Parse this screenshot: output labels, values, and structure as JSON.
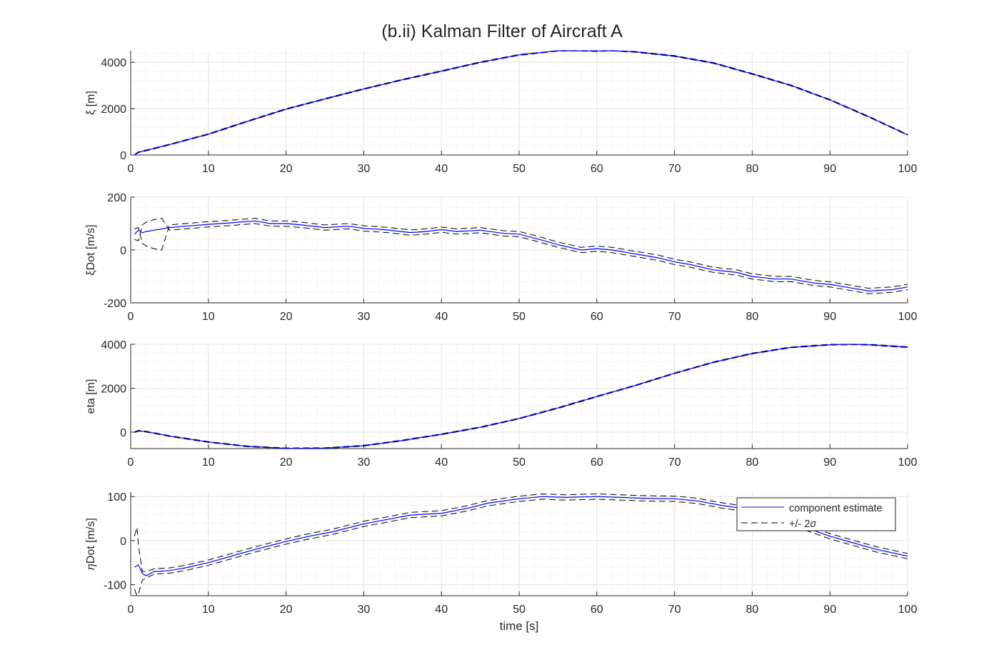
{
  "figure": {
    "title": "(b.ii) Kalman Filter of Aircraft A",
    "xlabel": "time [s]",
    "colors": {
      "estimate": "#0000ff",
      "bounds": "#000000",
      "grid": "#e3e3e3",
      "axis": "#262626"
    },
    "legend": {
      "placement": "inside-right of bottom subplot",
      "entries": [
        {
          "label": "component estimate",
          "style": "solid-blue"
        },
        {
          "label": "+/- 2",
          "symbol": "σ",
          "style": "dashed-black"
        }
      ]
    }
  },
  "chart_data": [
    {
      "type": "line",
      "ylabel": "ξ [m]",
      "xlim": [
        0,
        100
      ],
      "ylim": [
        0,
        4500
      ],
      "xticks": [
        0,
        10,
        20,
        30,
        40,
        50,
        60,
        70,
        80,
        90,
        100
      ],
      "yticks": [
        0,
        2000,
        4000
      ],
      "grid": true,
      "band": 20,
      "x": [
        0.5,
        1,
        2,
        5,
        10,
        15,
        20,
        25,
        30,
        35,
        40,
        45,
        50,
        55,
        57,
        60,
        62,
        65,
        70,
        75,
        80,
        85,
        90,
        95,
        100
      ],
      "series": [
        {
          "values": [
            0,
            120,
            200,
            450,
            900,
            1450,
            1980,
            2420,
            2850,
            3250,
            3620,
            4000,
            4320,
            4500,
            4510,
            4490,
            4510,
            4450,
            4270,
            3970,
            3500,
            3000,
            2380,
            1650,
            870
          ]
        }
      ]
    },
    {
      "type": "line",
      "ylabel": "ξDot [m/s]",
      "xlim": [
        0,
        100
      ],
      "ylim": [
        -200,
        200
      ],
      "xticks": [
        0,
        10,
        20,
        30,
        40,
        50,
        60,
        70,
        80,
        90,
        100
      ],
      "yticks": [
        -200,
        0,
        200
      ],
      "grid": true,
      "band": 10,
      "x": [
        0.5,
        1,
        1.5,
        2,
        3,
        5,
        7,
        10,
        13,
        16,
        18,
        20,
        22,
        25,
        28,
        30,
        33,
        36,
        38,
        40,
        42,
        45,
        48,
        50,
        52,
        55,
        58,
        60,
        62,
        65,
        68,
        70,
        72,
        75,
        78,
        80,
        83,
        85,
        88,
        90,
        92,
        95,
        98,
        100
      ],
      "series": [
        {
          "values": [
            60,
            75,
            65,
            70,
            75,
            85,
            90,
            97,
            103,
            110,
            100,
            100,
            95,
            85,
            90,
            82,
            76,
            66,
            70,
            77,
            70,
            75,
            63,
            60,
            45,
            20,
            0,
            5,
            0,
            -15,
            -30,
            -45,
            -55,
            -75,
            -85,
            -100,
            -110,
            -110,
            -125,
            -130,
            -140,
            -155,
            -150,
            -140
          ]
        }
      ],
      "bounds_extra": [
        [
          0.5,
          80
        ],
        [
          1,
          85
        ],
        [
          1.5,
          25
        ],
        [
          2,
          15
        ],
        [
          3,
          5
        ],
        [
          4,
          0
        ]
      ]
    },
    {
      "type": "line",
      "ylabel": "eta [m]",
      "xlim": [
        0,
        100
      ],
      "ylim": [
        -750,
        4000
      ],
      "xticks": [
        0,
        10,
        20,
        30,
        40,
        50,
        60,
        70,
        80,
        90,
        100
      ],
      "yticks": [
        0,
        2000,
        4000
      ],
      "grid": true,
      "band": 20,
      "x": [
        0.5,
        1,
        2,
        5,
        10,
        15,
        20,
        25,
        30,
        35,
        40,
        45,
        50,
        55,
        60,
        65,
        70,
        75,
        80,
        85,
        90,
        93,
        95,
        100
      ],
      "series": [
        {
          "values": [
            0,
            60,
            20,
            -180,
            -450,
            -650,
            -740,
            -730,
            -620,
            -380,
            -100,
            220,
            620,
            1100,
            1620,
            2130,
            2680,
            3180,
            3580,
            3860,
            3980,
            4000,
            3980,
            3870
          ]
        }
      ]
    },
    {
      "type": "line",
      "ylabel": "ηDot [m/s]",
      "ylabel_symbol": "η",
      "ylabel_text": "Dot [m/s]",
      "xlim": [
        0,
        100
      ],
      "ylim": [
        -125,
        110
      ],
      "xticks": [
        0,
        10,
        20,
        30,
        40,
        50,
        60,
        70,
        80,
        90,
        100
      ],
      "yticks": [
        -100,
        0,
        100
      ],
      "grid": true,
      "band": 6,
      "x": [
        0.5,
        1,
        1.5,
        2,
        3,
        5,
        7,
        10,
        13,
        16,
        20,
        23,
        26,
        30,
        33,
        36,
        40,
        43,
        46,
        50,
        53,
        56,
        60,
        63,
        66,
        70,
        73,
        76,
        80,
        83,
        86,
        90,
        93,
        96,
        100
      ],
      "series": [
        {
          "values": [
            -60,
            -55,
            -75,
            -80,
            -70,
            -68,
            -62,
            -50,
            -35,
            -20,
            -2,
            10,
            20,
            38,
            48,
            58,
            62,
            72,
            85,
            95,
            100,
            98,
            100,
            98,
            96,
            95,
            90,
            80,
            70,
            55,
            35,
            10,
            -5,
            -20,
            -35
          ]
        }
      ],
      "bounds_extra": [
        [
          0.5,
          10
        ],
        [
          0.8,
          30
        ],
        [
          1,
          -10
        ],
        [
          1.5,
          -70
        ],
        [
          2,
          -70
        ]
      ],
      "bounds_lower_extra": [
        [
          0.5,
          -110
        ],
        [
          0.8,
          -125
        ],
        [
          1,
          -120
        ],
        [
          1.5,
          -90
        ],
        [
          2,
          -85
        ]
      ]
    }
  ]
}
